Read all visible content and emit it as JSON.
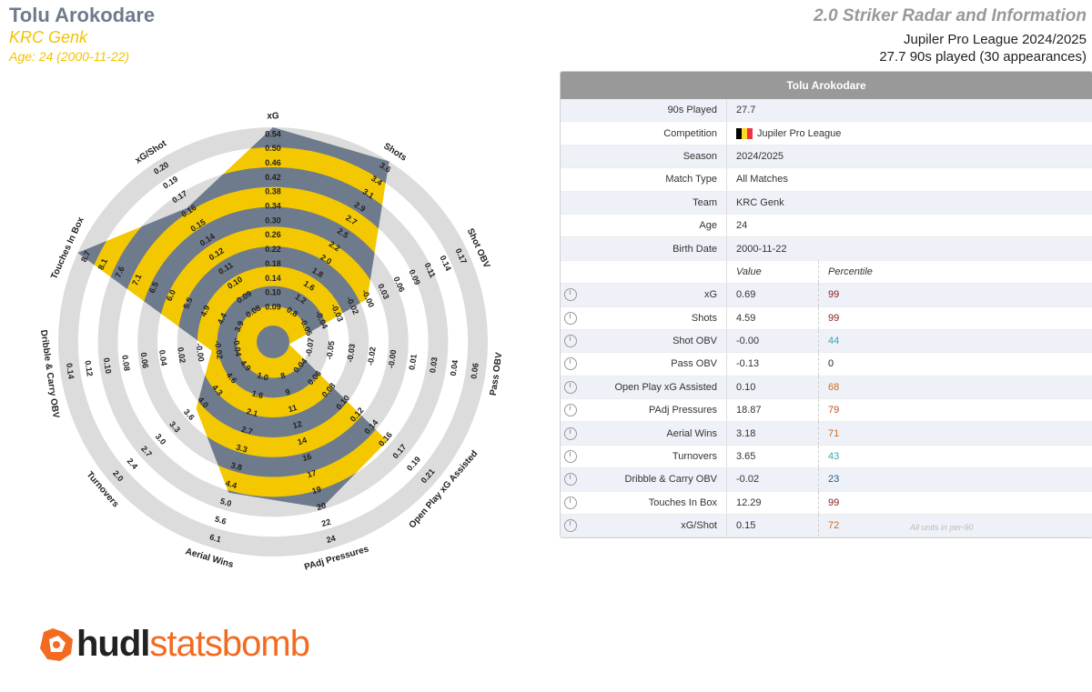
{
  "header": {
    "player_name": "Tolu Arokodare",
    "team": "KRC Genk",
    "age_line": "Age: 24 (2000-11-22)",
    "report_title": "2.0 Striker Radar and Information",
    "competition_line": "Jupiler Pro League 2024/2025",
    "played_line": "27.7 90s played (30 appearances)"
  },
  "colors": {
    "ring_grey": "#dcdcdc",
    "fill_yellow": "#f4c800",
    "fill_slate": "#6e7b8c",
    "accent_orange": "#f26b21"
  },
  "table": {
    "title": "Tolu Arokodare",
    "info_rows": [
      {
        "label": "90s Played",
        "value": "27.7"
      },
      {
        "label": "Competition",
        "value": "Jupiler Pro League"
      },
      {
        "label": "Season",
        "value": "2024/2025"
      },
      {
        "label": "Match Type",
        "value": "All Matches"
      },
      {
        "label": "Team",
        "value": "KRC Genk"
      },
      {
        "label": "Age",
        "value": "24"
      },
      {
        "label": "Birth Date",
        "value": "2000-11-22"
      }
    ],
    "value_header": "Value",
    "percentile_header": "Percentile",
    "metric_rows": [
      {
        "label": "xG",
        "value": "0.69",
        "percentile": "99",
        "color": "#8b1a1a"
      },
      {
        "label": "Shots",
        "value": "4.59",
        "percentile": "99",
        "color": "#8b1a1a"
      },
      {
        "label": "Shot OBV",
        "value": "-0.00",
        "percentile": "44",
        "color": "#3aa8b0"
      },
      {
        "label": "Pass OBV",
        "value": "-0.13",
        "percentile": "0",
        "color": "#222222"
      },
      {
        "label": "Open Play xG Assisted",
        "value": "0.10",
        "percentile": "68",
        "color": "#d2691e"
      },
      {
        "label": "PAdj Pressures",
        "value": "18.87",
        "percentile": "79",
        "color": "#c0501e"
      },
      {
        "label": "Aerial Wins",
        "value": "3.18",
        "percentile": "71",
        "color": "#d2691e"
      },
      {
        "label": "Turnovers",
        "value": "3.65",
        "percentile": "43",
        "color": "#3aa8b0"
      },
      {
        "label": "Dribble & Carry OBV",
        "value": "-0.02",
        "percentile": "23",
        "color": "#1f5f8b"
      },
      {
        "label": "Touches In Box",
        "value": "12.29",
        "percentile": "99",
        "color": "#8b1a1a"
      },
      {
        "label": "xG/Shot",
        "value": "0.15",
        "percentile": "72",
        "color": "#d2691e"
      }
    ],
    "units_note": "All units in per-90"
  },
  "logo": {
    "word1": "hudl",
    "word2": "statsbomb"
  },
  "chart_data": {
    "type": "radar",
    "axes": [
      {
        "name": "xG",
        "ticks": [
          "0.09",
          "0.10",
          "0.14",
          "0.18",
          "0.22",
          "0.26",
          "0.30",
          "0.34",
          "0.38",
          "0.42",
          "0.46",
          "0.50",
          "0.54"
        ],
        "value": 0.69,
        "fill": 1.0
      },
      {
        "name": "Shots",
        "ticks": [
          "0.8",
          "1.2",
          "1.6",
          "1.8",
          "2.0",
          "2.2",
          "2.5",
          "2.7",
          "2.9",
          "3.1",
          "3.4",
          "3.6"
        ],
        "value": 4.59,
        "fill": 1.0
      },
      {
        "name": "Shot OBV",
        "ticks": [
          "-0.05",
          "-0.04",
          "-0.03",
          "-0.02",
          "-0.00",
          "0.03",
          "0.06",
          "0.09",
          "0.11",
          "0.14",
          "0.17"
        ],
        "value": -0.0,
        "fill": 0.44
      },
      {
        "name": "Pass OBV",
        "ticks": [
          "-0.07",
          "-0.05",
          "-0.03",
          "-0.02",
          "-0.00",
          "0.01",
          "0.03",
          "0.04",
          "0.06"
        ],
        "value": -0.13,
        "fill": 0.0
      },
      {
        "name": "Open Play xG Assisted",
        "ticks": [
          "0.04",
          "0.06",
          "0.08",
          "0.10",
          "0.12",
          "0.14",
          "0.16",
          "0.17",
          "0.19",
          "0.21"
        ],
        "value": 0.1,
        "fill": 0.68
      },
      {
        "name": "PAdj Pressures",
        "ticks": [
          "8",
          "9",
          "11",
          "12",
          "14",
          "16",
          "17",
          "19",
          "20",
          "22",
          "24"
        ],
        "value": 18.87,
        "fill": 0.79
      },
      {
        "name": "Aerial Wins",
        "ticks": [
          "1.0",
          "1.6",
          "2.1",
          "2.7",
          "3.3",
          "3.8",
          "4.4",
          "5.0",
          "5.6",
          "6.1"
        ],
        "value": 3.18,
        "fill": 0.71
      },
      {
        "name": "Turnovers",
        "ticks": [
          "4.9",
          "4.6",
          "4.3",
          "4.0",
          "3.6",
          "3.3",
          "3.0",
          "2.7",
          "2.4",
          "2.0"
        ],
        "value": 3.65,
        "fill": 0.43
      },
      {
        "name": "Dribble & Carry OBV",
        "ticks": [
          "-0.04",
          "-0.02",
          "-0.00",
          "0.02",
          "0.04",
          "0.06",
          "0.08",
          "0.10",
          "0.12",
          "0.14"
        ],
        "value": -0.02,
        "fill": 0.23
      },
      {
        "name": "Touches In Box",
        "ticks": [
          "3.9",
          "4.4",
          "4.9",
          "5.5",
          "6.0",
          "6.5",
          "7.1",
          "7.6",
          "8.1",
          "8.7"
        ],
        "value": 12.29,
        "fill": 1.0
      },
      {
        "name": "xG/Shot",
        "ticks": [
          "0.08",
          "0.09",
          "0.10",
          "0.11",
          "0.12",
          "0.14",
          "0.15",
          "0.16",
          "0.17",
          "0.19",
          "0.20"
        ],
        "value": 0.15,
        "fill": 0.72
      }
    ]
  }
}
